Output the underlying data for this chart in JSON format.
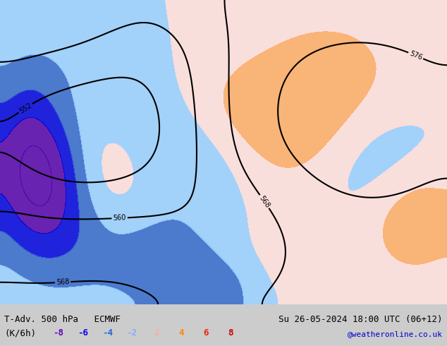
{
  "title_left": "T-Adv. 500 hPa   ECMWF",
  "title_right": "Su 26-05-2024 18:00 UTC (06+12)",
  "unit_label": "(K/6h)",
  "legend_values": [
    -8,
    -6,
    -4,
    -2,
    2,
    4,
    6,
    8
  ],
  "legend_colors": [
    "#6600cc",
    "#0000ff",
    "#0066ff",
    "#66aaff",
    "#ffaaaa",
    "#ff6600",
    "#ff0000",
    "#cc0000"
  ],
  "negative_colors": [
    "#6600cc",
    "#0000ff",
    "#0066ff",
    "#66aaff"
  ],
  "positive_colors": [
    "#ffaaaa",
    "#ff6600",
    "#ff0000",
    "#cc0000"
  ],
  "watermark": "@weatheronline.co.uk",
  "watermark_color": "#0000cc",
  "background_color": "#e8f4e8",
  "fig_width": 6.34,
  "fig_height": 4.9,
  "dpi": 100
}
